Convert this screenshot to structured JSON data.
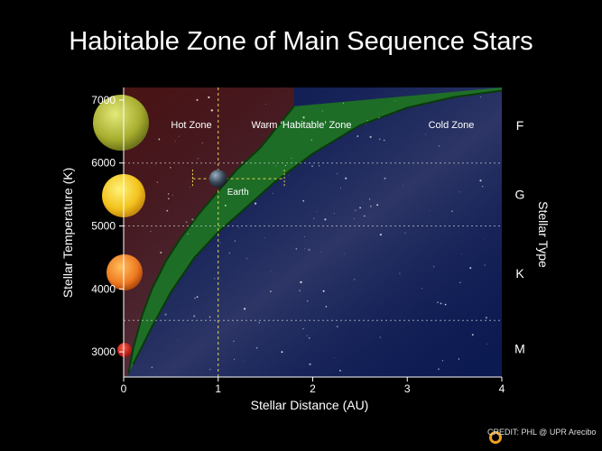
{
  "chart_data": {
    "type": "area",
    "title": "Habitable Zone of Main Sequence Stars",
    "xlabel": "Stellar Distance (AU)",
    "ylabel": "Stellar Temperature (K)",
    "right_axis_label": "Stellar Type",
    "xlim": [
      0,
      4
    ],
    "ylim": [
      2600,
      7200
    ],
    "x_ticks": [
      0,
      1,
      2,
      3,
      4
    ],
    "y_ticks": [
      3000,
      4000,
      5000,
      6000,
      7000
    ],
    "spectral_types": [
      {
        "label": "F",
        "y": 6600
      },
      {
        "label": "G",
        "y": 5500
      },
      {
        "label": "K",
        "y": 4250
      },
      {
        "label": "M",
        "y": 3050
      }
    ],
    "grid": {
      "horizontal_at": [
        3500,
        5000,
        6000
      ],
      "vertical_at": [
        1
      ]
    },
    "zones": [
      {
        "name": "Hot Zone",
        "color": "#4a1414"
      },
      {
        "name": "Warm ‘Habitable’ Zone",
        "color": "#1e7a1e"
      },
      {
        "name": "Cold Zone",
        "color": "#0c1a52"
      }
    ],
    "habitable_zone_inner": {
      "x": [
        0.05,
        0.1,
        0.2,
        0.3,
        0.45,
        0.6,
        0.8,
        1.0,
        1.2,
        1.45,
        1.8
      ],
      "y": [
        2650,
        3050,
        3600,
        4000,
        4450,
        4800,
        5200,
        5550,
        5900,
        6250,
        6900
      ]
    },
    "habitable_zone_outer": {
      "x": [
        0.1,
        0.3,
        0.5,
        0.75,
        1.0,
        1.3,
        1.6,
        2.0,
        2.5,
        3.0,
        3.5,
        4.0
      ],
      "y": [
        2800,
        3400,
        3950,
        4500,
        4900,
        5300,
        5700,
        6150,
        6600,
        6880,
        7050,
        7150
      ]
    },
    "annotation": {
      "label": "Earth",
      "x": 1.0,
      "y": 5750,
      "range_x": [
        0.73,
        1.7
      ]
    },
    "star_colors": [
      "#b9c23a",
      "#f2d02a",
      "#ee8a28",
      "#d02020"
    ],
    "credit": "CREDIT: PHL @ UPR Arecibo"
  }
}
